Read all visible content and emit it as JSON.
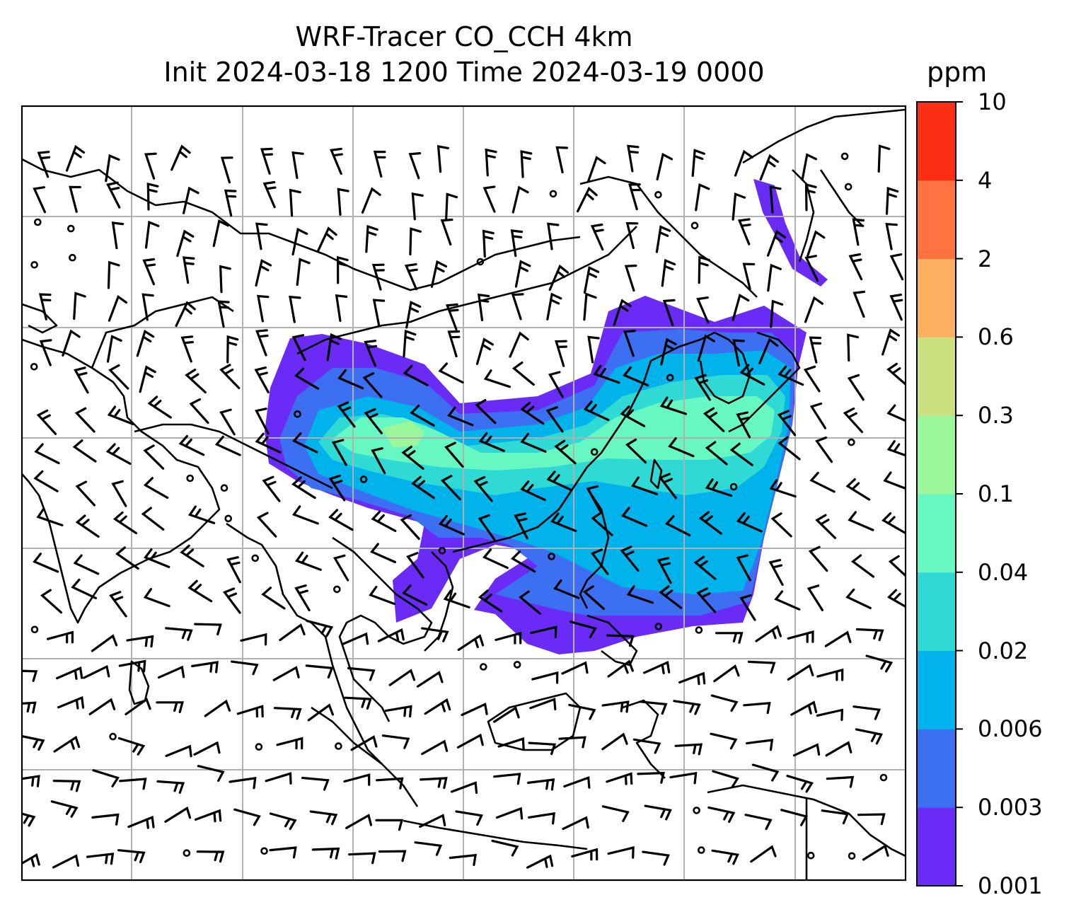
{
  "title_line1": "WRF-Tracer CO_CCH 4km",
  "title_line2": "Init 2024-03-18 1200 Time 2024-03-19 0000",
  "colorbar": {
    "unit": "ppm",
    "levels": [
      "0.001",
      "0.003",
      "0.006",
      "0.02",
      "0.04",
      "0.1",
      "0.3",
      "0.6",
      "2",
      "4",
      "10"
    ],
    "colors": [
      "#6a2bf7",
      "#3d6ff2",
      "#00b3ea",
      "#2fd9d4",
      "#67f7c3",
      "#9cf79b",
      "#cde07f",
      "#fdb160",
      "#fe7340",
      "#fb2e16"
    ]
  },
  "map": {
    "frame_color": "#000000",
    "grid_color": "#b0b0b0",
    "coastline_color": "#000000",
    "barb_color": "#000000"
  }
}
